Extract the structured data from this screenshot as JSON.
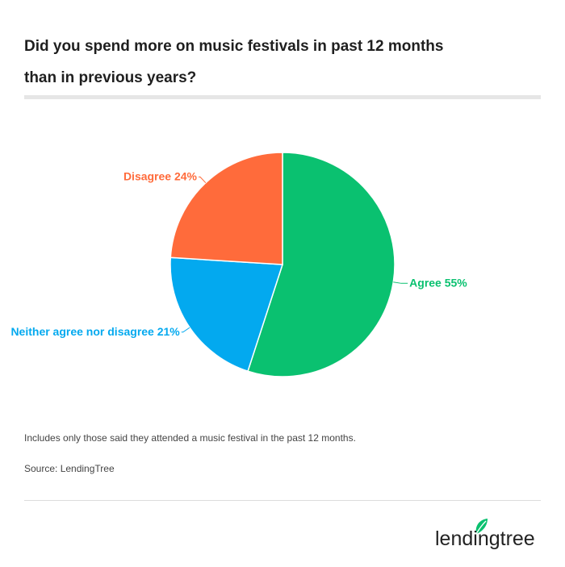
{
  "title": "Did you spend more on music festivals in past 12 months than in previous years?",
  "note": "Includes only those said they attended a music festival in the past 12 months.",
  "source": "Source: LendingTree",
  "logo": {
    "text": "lendingtree",
    "icon": "leaf-icon",
    "color": "#222222",
    "leaf_color": "#0ac06f"
  },
  "chart_data": {
    "type": "pie",
    "title": "Did you spend more on music festivals in past 12 months than in previous years?",
    "slices": [
      {
        "label": "Agree 55%",
        "category": "Agree",
        "value": 55,
        "color": "#0ac170"
      },
      {
        "label": "Neither agree nor disagree 21%",
        "category": "Neither agree nor disagree",
        "value": 21,
        "color": "#03a9ef"
      },
      {
        "label": "Disagree 24%",
        "category": "Disagree",
        "value": 24,
        "color": "#ff6b3b"
      }
    ],
    "start_angle": "12 o'clock",
    "direction": "clockwise",
    "labels": "outside with leader lines"
  }
}
